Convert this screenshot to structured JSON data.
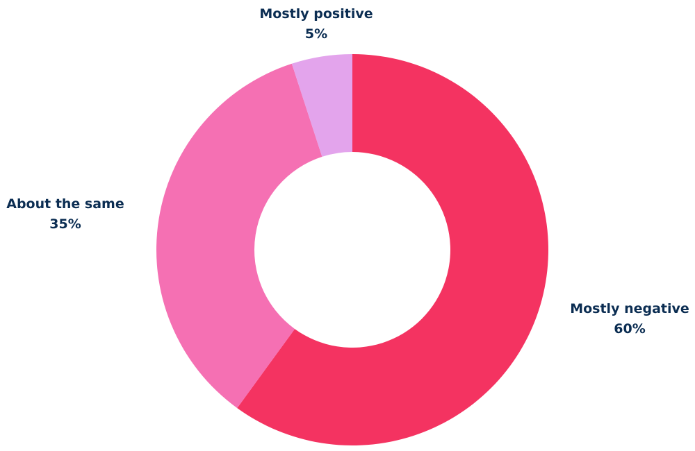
{
  "chart_data": {
    "type": "pie",
    "variant": "donut",
    "title": "",
    "categories": [
      "Mostly negative",
      "About the same",
      "Mostly positive"
    ],
    "values": [
      60,
      35,
      5
    ],
    "value_labels": [
      "60%",
      "35%",
      "5%"
    ],
    "unit": "%",
    "start": "12 o'clock",
    "direction": "clockwise",
    "legend": "none",
    "colors": [
      "#f43361",
      "#f570b3",
      "#e3a4ec"
    ],
    "label_color": "#0b2d52"
  }
}
